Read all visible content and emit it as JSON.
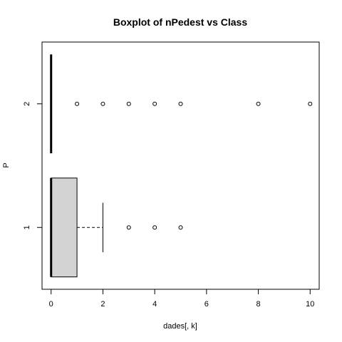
{
  "chart_data": {
    "type": "boxplot",
    "orientation": "horizontal",
    "title": "Boxplot of nPedest vs Class",
    "xlabel": "dades[, k]",
    "ylabel": "P",
    "xlim": [
      -0.35,
      10.35
    ],
    "xticks": [
      0,
      2,
      4,
      6,
      8,
      10
    ],
    "categories": [
      "1",
      "2"
    ],
    "box_fill": "#d3d3d3",
    "grid": false,
    "legend": "none",
    "boxes": [
      {
        "category": "1",
        "lower_whisker": 0,
        "q1": 0,
        "median": 0,
        "q3": 1,
        "upper_whisker": 2,
        "outliers": [
          3,
          4,
          5
        ]
      },
      {
        "category": "2",
        "lower_whisker": 0,
        "q1": 0,
        "median": 0,
        "q3": 0,
        "upper_whisker": 0,
        "outliers": [
          1,
          2,
          3,
          4,
          5,
          8,
          10
        ]
      }
    ]
  }
}
